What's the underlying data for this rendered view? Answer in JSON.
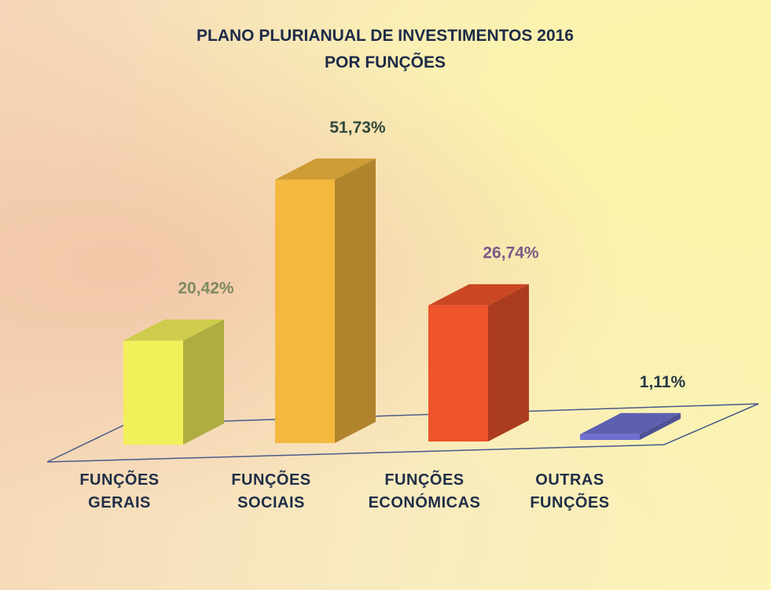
{
  "chart_data": {
    "type": "bar3d",
    "title": [
      "PLANO PLURIANUAL  DE INVESTIMENTOS  2016",
      "POR FUNÇÕES"
    ],
    "categories": [
      "FUNÇÕES GERAIS",
      "FUNÇÕES SOCIAIS",
      "FUNÇÕES ECONÓMICAS",
      "OUTRAS FUNÇÕES"
    ],
    "values": [
      20.42,
      51.73,
      26.74,
      1.11
    ],
    "value_labels": [
      "20,42%",
      "51,73%",
      "26,74%",
      "1,11%"
    ],
    "colors": [
      "#f2f05a",
      "#f4b83e",
      "#ee5429",
      "#6e70cf"
    ],
    "label_colors": [
      "#7c8a5c",
      "#2e4a3c",
      "#7a5a88",
      "#263846"
    ]
  }
}
